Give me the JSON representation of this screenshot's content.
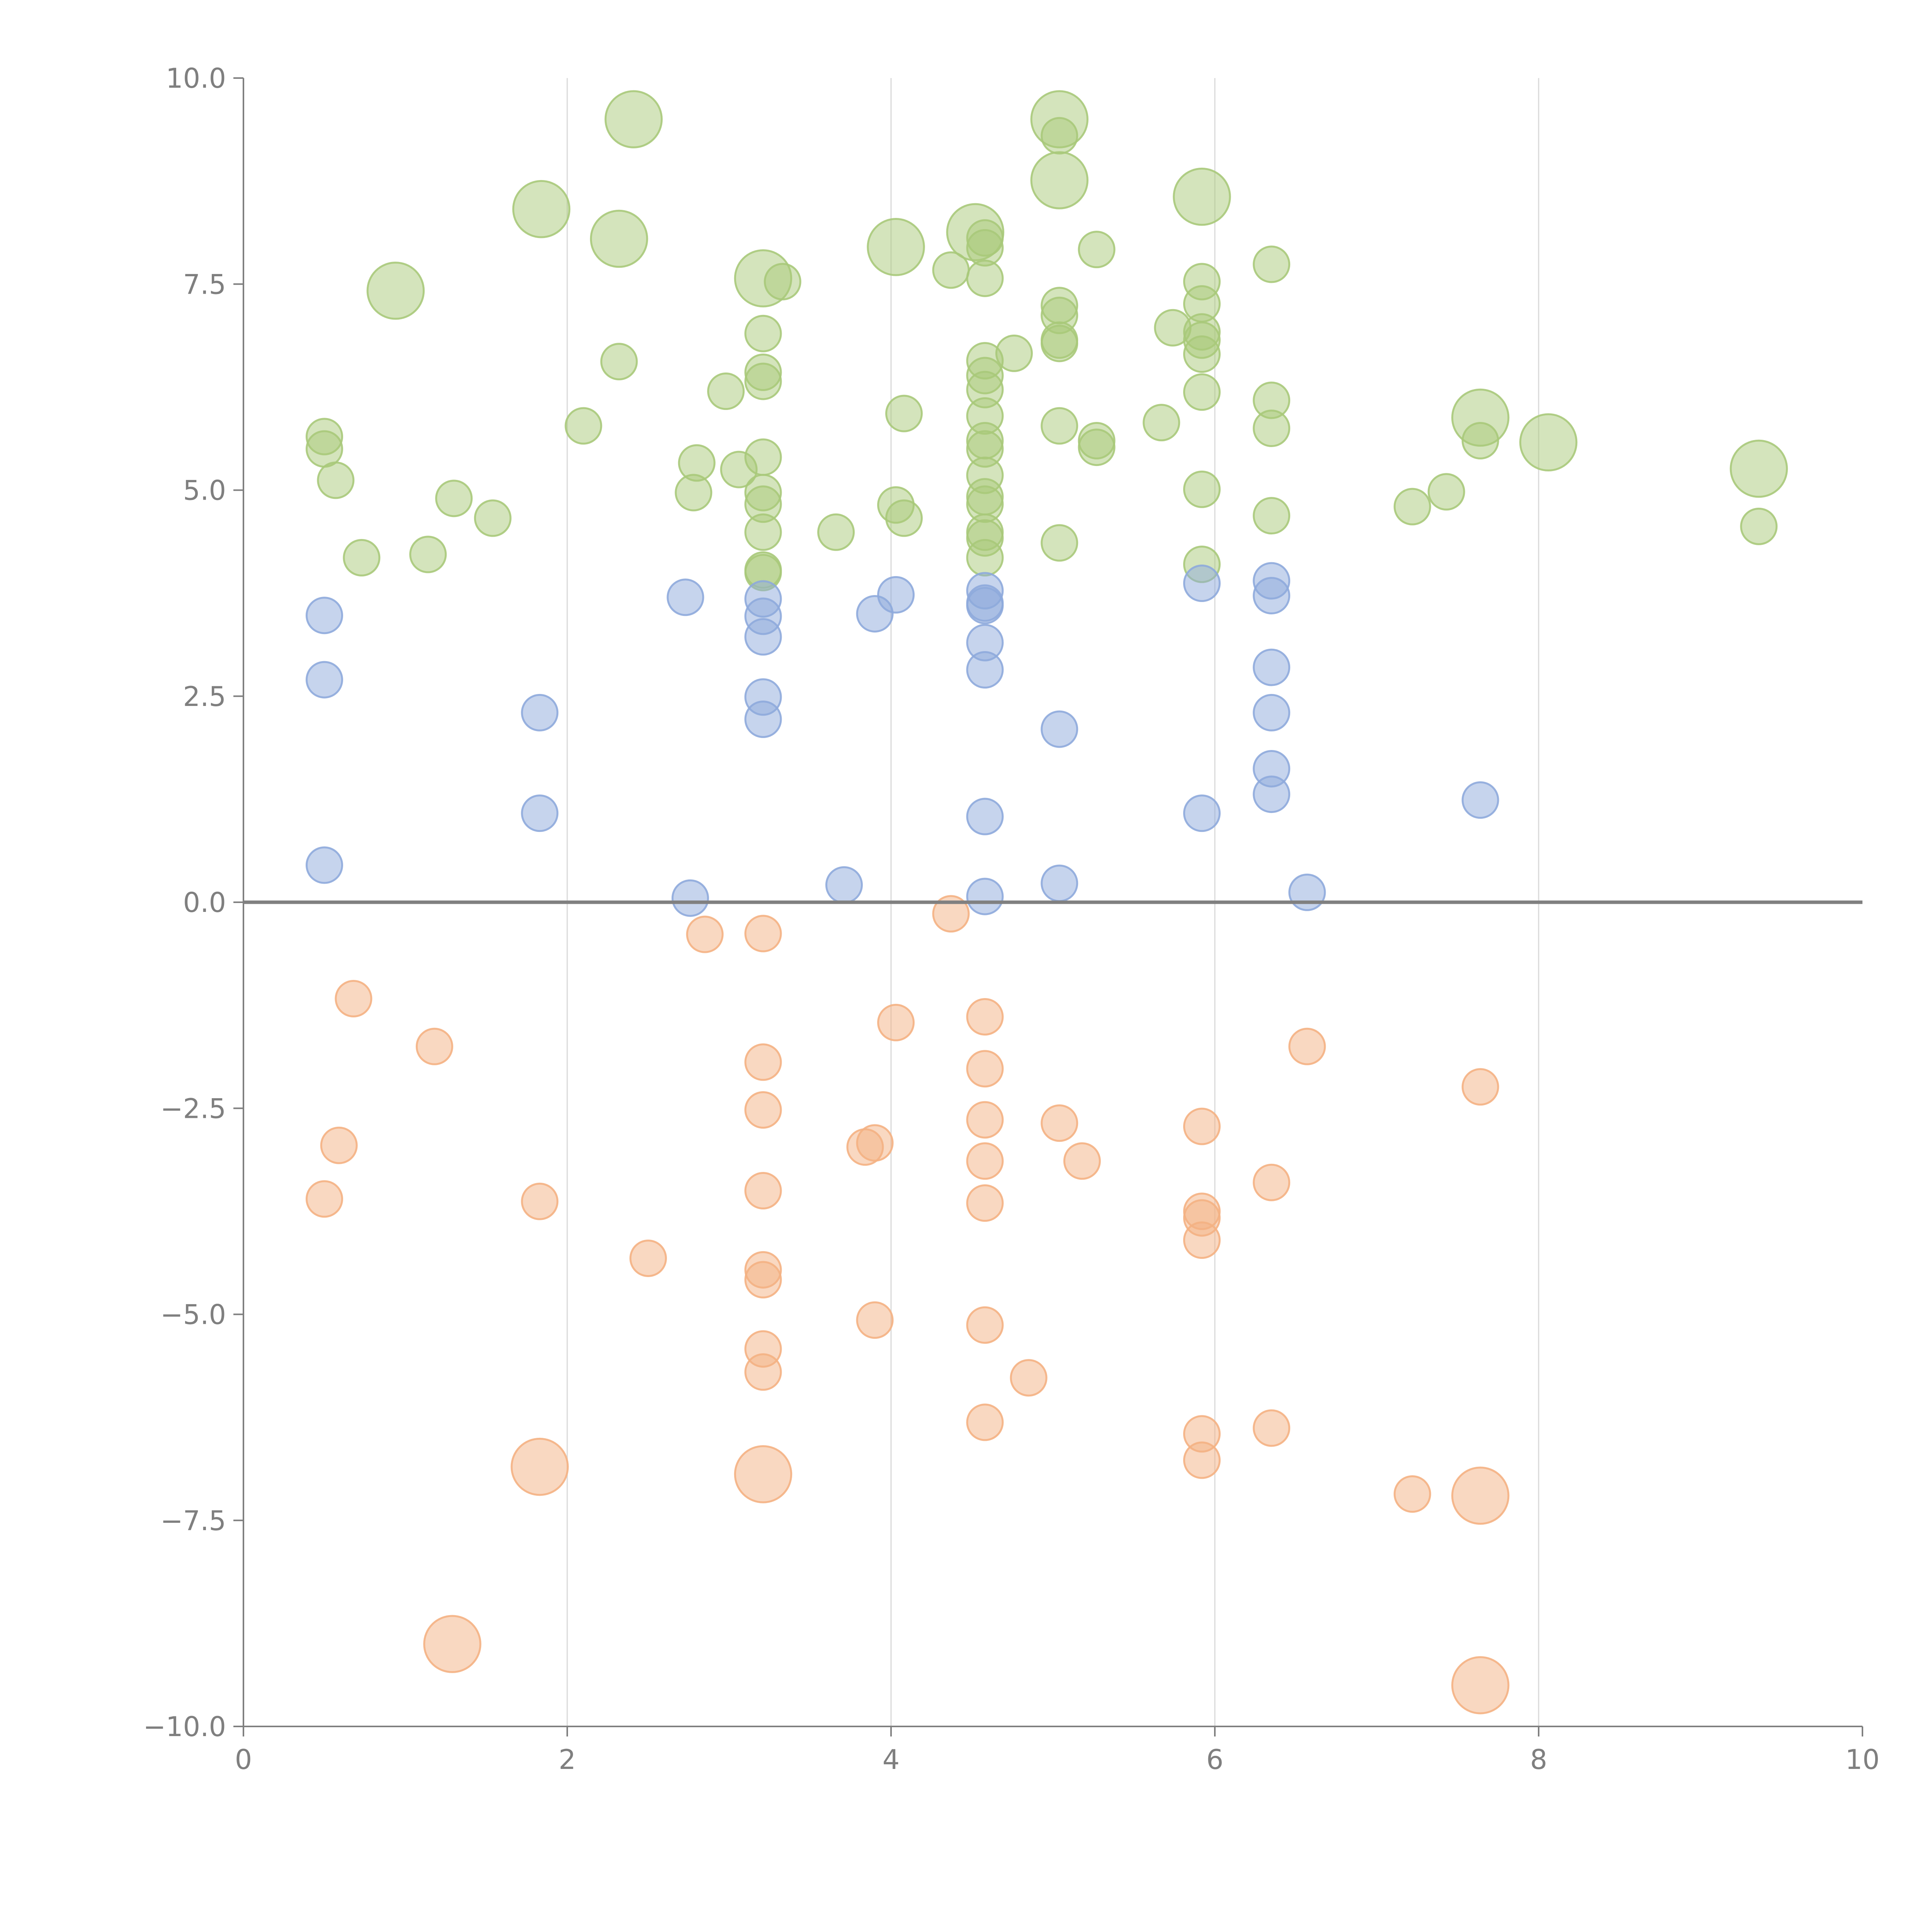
{
  "chart_data": {
    "type": "scatter",
    "subtype": "bubble",
    "title": "",
    "xlabel": "",
    "ylabel": "",
    "xlim": [
      0,
      10
    ],
    "ylim": [
      -10,
      10
    ],
    "x_ticks": [
      0,
      2,
      4,
      6,
      8,
      10
    ],
    "x_tick_labels": [
      "0",
      "2",
      "4",
      "6",
      "8",
      "10"
    ],
    "y_ticks": [
      10,
      7.5,
      5,
      2.5,
      0,
      -2.5,
      -5,
      -7.5,
      -10
    ],
    "y_tick_labels": [
      "10.0",
      "7.5",
      "5.0",
      "2.5",
      "0.0",
      "−2.5",
      "−5.0",
      "−7.5",
      "−10.0"
    ],
    "vertical_gridlines": true,
    "reference_line_y": 0,
    "series": [
      {
        "name": "green",
        "color": "#a9c97a",
        "points": [
          {
            "x": 0.5,
            "y": 5.65,
            "size": 1
          },
          {
            "x": 0.5,
            "y": 5.5,
            "size": 1
          },
          {
            "x": 0.57,
            "y": 5.12,
            "size": 1
          },
          {
            "x": 0.73,
            "y": 4.18,
            "size": 1
          },
          {
            "x": 0.94,
            "y": 7.42,
            "size": 2.5
          },
          {
            "x": 1.14,
            "y": 4.22,
            "size": 1
          },
          {
            "x": 1.3,
            "y": 4.9,
            "size": 1
          },
          {
            "x": 1.54,
            "y": 4.66,
            "size": 1
          },
          {
            "x": 1.84,
            "y": 8.41,
            "size": 2.5
          },
          {
            "x": 2.1,
            "y": 5.78,
            "size": 1
          },
          {
            "x": 2.32,
            "y": 8.05,
            "size": 2.5
          },
          {
            "x": 2.32,
            "y": 6.56,
            "size": 1
          },
          {
            "x": 2.41,
            "y": 9.5,
            "size": 2.5
          },
          {
            "x": 2.78,
            "y": 4.97,
            "size": 1
          },
          {
            "x": 2.8,
            "y": 5.33,
            "size": 1
          },
          {
            "x": 2.98,
            "y": 6.2,
            "size": 1
          },
          {
            "x": 3.06,
            "y": 5.25,
            "size": 1
          },
          {
            "x": 3.21,
            "y": 7.57,
            "size": 2.5
          },
          {
            "x": 3.21,
            "y": 6.9,
            "size": 1
          },
          {
            "x": 3.21,
            "y": 6.43,
            "size": 1
          },
          {
            "x": 3.21,
            "y": 6.32,
            "size": 1
          },
          {
            "x": 3.21,
            "y": 5.4,
            "size": 1
          },
          {
            "x": 3.21,
            "y": 4.97,
            "size": 1
          },
          {
            "x": 3.21,
            "y": 4.83,
            "size": 1
          },
          {
            "x": 3.21,
            "y": 4.49,
            "size": 1
          },
          {
            "x": 3.21,
            "y": 4.03,
            "size": 1
          },
          {
            "x": 3.21,
            "y": 4.0,
            "size": 1
          },
          {
            "x": 3.33,
            "y": 7.53,
            "size": 1
          },
          {
            "x": 3.66,
            "y": 4.49,
            "size": 1
          },
          {
            "x": 4.03,
            "y": 7.95,
            "size": 2.5
          },
          {
            "x": 4.03,
            "y": 4.82,
            "size": 1
          },
          {
            "x": 4.08,
            "y": 4.66,
            "size": 1
          },
          {
            "x": 4.08,
            "y": 5.93,
            "size": 1
          },
          {
            "x": 4.37,
            "y": 7.67,
            "size": 1
          },
          {
            "x": 4.52,
            "y": 8.13,
            "size": 2.5
          },
          {
            "x": 4.58,
            "y": 8.06,
            "size": 1
          },
          {
            "x": 4.58,
            "y": 7.94,
            "size": 1
          },
          {
            "x": 4.58,
            "y": 7.57,
            "size": 1
          },
          {
            "x": 4.58,
            "y": 6.57,
            "size": 1
          },
          {
            "x": 4.58,
            "y": 6.39,
            "size": 1
          },
          {
            "x": 4.58,
            "y": 6.22,
            "size": 1
          },
          {
            "x": 4.58,
            "y": 5.9,
            "size": 1
          },
          {
            "x": 4.58,
            "y": 5.6,
            "size": 1
          },
          {
            "x": 4.58,
            "y": 5.5,
            "size": 1
          },
          {
            "x": 4.58,
            "y": 5.18,
            "size": 1
          },
          {
            "x": 4.58,
            "y": 4.92,
            "size": 1
          },
          {
            "x": 4.58,
            "y": 4.83,
            "size": 1
          },
          {
            "x": 4.58,
            "y": 4.49,
            "size": 1
          },
          {
            "x": 4.58,
            "y": 4.42,
            "size": 1
          },
          {
            "x": 4.58,
            "y": 4.18,
            "size": 1
          },
          {
            "x": 4.76,
            "y": 6.66,
            "size": 1
          },
          {
            "x": 5.04,
            "y": 9.5,
            "size": 2.5
          },
          {
            "x": 5.04,
            "y": 9.3,
            "size": 1
          },
          {
            "x": 5.04,
            "y": 8.76,
            "size": 2.5
          },
          {
            "x": 5.04,
            "y": 7.24,
            "size": 1
          },
          {
            "x": 5.04,
            "y": 7.12,
            "size": 1
          },
          {
            "x": 5.04,
            "y": 6.82,
            "size": 1
          },
          {
            "x": 5.04,
            "y": 6.78,
            "size": 1
          },
          {
            "x": 5.04,
            "y": 5.78,
            "size": 1
          },
          {
            "x": 5.04,
            "y": 4.36,
            "size": 1
          },
          {
            "x": 5.27,
            "y": 7.92,
            "size": 1
          },
          {
            "x": 5.27,
            "y": 5.6,
            "size": 1
          },
          {
            "x": 5.27,
            "y": 5.52,
            "size": 1
          },
          {
            "x": 5.67,
            "y": 5.82,
            "size": 1
          },
          {
            "x": 5.74,
            "y": 6.97,
            "size": 1
          },
          {
            "x": 5.92,
            "y": 8.56,
            "size": 2.5
          },
          {
            "x": 5.92,
            "y": 7.53,
            "size": 1
          },
          {
            "x": 5.92,
            "y": 7.26,
            "size": 1
          },
          {
            "x": 5.92,
            "y": 6.92,
            "size": 1
          },
          {
            "x": 5.92,
            "y": 6.82,
            "size": 1
          },
          {
            "x": 5.92,
            "y": 6.65,
            "size": 1
          },
          {
            "x": 5.92,
            "y": 6.19,
            "size": 1
          },
          {
            "x": 5.92,
            "y": 5.01,
            "size": 1
          },
          {
            "x": 5.92,
            "y": 4.1,
            "size": 1
          },
          {
            "x": 6.35,
            "y": 7.74,
            "size": 1
          },
          {
            "x": 6.35,
            "y": 6.09,
            "size": 1
          },
          {
            "x": 6.35,
            "y": 5.75,
            "size": 1
          },
          {
            "x": 6.35,
            "y": 4.69,
            "size": 1
          },
          {
            "x": 7.22,
            "y": 4.8,
            "size": 1
          },
          {
            "x": 7.43,
            "y": 4.98,
            "size": 1
          },
          {
            "x": 7.64,
            "y": 5.88,
            "size": 2.5
          },
          {
            "x": 7.64,
            "y": 5.6,
            "size": 1
          },
          {
            "x": 8.06,
            "y": 5.58,
            "size": 2.5
          },
          {
            "x": 9.36,
            "y": 5.26,
            "size": 2.5
          },
          {
            "x": 9.36,
            "y": 4.56,
            "size": 1
          }
        ]
      },
      {
        "name": "blue",
        "color": "#8eaadb",
        "points": [
          {
            "x": 0.5,
            "y": 3.48,
            "size": 1
          },
          {
            "x": 0.5,
            "y": 2.7,
            "size": 1
          },
          {
            "x": 0.5,
            "y": 0.45,
            "size": 1
          },
          {
            "x": 1.83,
            "y": 2.3,
            "size": 1
          },
          {
            "x": 1.83,
            "y": 1.08,
            "size": 1
          },
          {
            "x": 2.73,
            "y": 3.7,
            "size": 1
          },
          {
            "x": 2.76,
            "y": 0.05,
            "size": 1
          },
          {
            "x": 3.21,
            "y": 3.68,
            "size": 1
          },
          {
            "x": 3.21,
            "y": 3.47,
            "size": 1
          },
          {
            "x": 3.21,
            "y": 3.22,
            "size": 1
          },
          {
            "x": 3.21,
            "y": 2.49,
            "size": 1
          },
          {
            "x": 3.21,
            "y": 2.22,
            "size": 1
          },
          {
            "x": 3.71,
            "y": 0.21,
            "size": 1
          },
          {
            "x": 3.9,
            "y": 3.5,
            "size": 1
          },
          {
            "x": 4.03,
            "y": 3.73,
            "size": 1
          },
          {
            "x": 4.58,
            "y": 3.78,
            "size": 1
          },
          {
            "x": 4.58,
            "y": 3.63,
            "size": 1
          },
          {
            "x": 4.58,
            "y": 3.6,
            "size": 1
          },
          {
            "x": 4.58,
            "y": 3.15,
            "size": 1
          },
          {
            "x": 4.58,
            "y": 2.82,
            "size": 1
          },
          {
            "x": 4.58,
            "y": 1.04,
            "size": 1
          },
          {
            "x": 4.58,
            "y": 0.07,
            "size": 1
          },
          {
            "x": 5.04,
            "y": 2.1,
            "size": 1
          },
          {
            "x": 5.04,
            "y": 0.23,
            "size": 1
          },
          {
            "x": 5.92,
            "y": 3.87,
            "size": 1
          },
          {
            "x": 5.92,
            "y": 1.08,
            "size": 1
          },
          {
            "x": 6.35,
            "y": 3.9,
            "size": 1
          },
          {
            "x": 6.35,
            "y": 3.72,
            "size": 1
          },
          {
            "x": 6.35,
            "y": 2.85,
            "size": 1
          },
          {
            "x": 6.35,
            "y": 2.3,
            "size": 1
          },
          {
            "x": 6.35,
            "y": 1.62,
            "size": 1
          },
          {
            "x": 6.35,
            "y": 1.31,
            "size": 1
          },
          {
            "x": 6.57,
            "y": 0.12,
            "size": 1
          },
          {
            "x": 7.64,
            "y": 1.24,
            "size": 1
          }
        ]
      },
      {
        "name": "orange",
        "color": "#f4b183",
        "points": [
          {
            "x": 0.5,
            "y": -3.6,
            "size": 1
          },
          {
            "x": 0.59,
            "y": -2.95,
            "size": 1
          },
          {
            "x": 0.68,
            "y": -1.17,
            "size": 1
          },
          {
            "x": 1.18,
            "y": -1.75,
            "size": 1
          },
          {
            "x": 1.29,
            "y": -9.0,
            "size": 2.5
          },
          {
            "x": 1.83,
            "y": -3.63,
            "size": 1
          },
          {
            "x": 1.83,
            "y": -6.85,
            "size": 2.5
          },
          {
            "x": 2.5,
            "y": -4.32,
            "size": 1
          },
          {
            "x": 2.85,
            "y": -0.39,
            "size": 1
          },
          {
            "x": 3.21,
            "y": -0.38,
            "size": 1
          },
          {
            "x": 3.21,
            "y": -1.94,
            "size": 1
          },
          {
            "x": 3.21,
            "y": -2.52,
            "size": 1
          },
          {
            "x": 3.21,
            "y": -3.5,
            "size": 1
          },
          {
            "x": 3.21,
            "y": -4.46,
            "size": 1
          },
          {
            "x": 3.21,
            "y": -4.58,
            "size": 1
          },
          {
            "x": 3.21,
            "y": -5.42,
            "size": 1
          },
          {
            "x": 3.21,
            "y": -5.7,
            "size": 1
          },
          {
            "x": 3.21,
            "y": -6.94,
            "size": 2.5
          },
          {
            "x": 3.84,
            "y": -2.97,
            "size": 1
          },
          {
            "x": 3.9,
            "y": -2.92,
            "size": 1
          },
          {
            "x": 3.9,
            "y": -5.07,
            "size": 1
          },
          {
            "x": 4.03,
            "y": -1.46,
            "size": 1
          },
          {
            "x": 4.37,
            "y": -0.14,
            "size": 1
          },
          {
            "x": 4.58,
            "y": -1.39,
            "size": 1
          },
          {
            "x": 4.58,
            "y": -2.02,
            "size": 1
          },
          {
            "x": 4.58,
            "y": -2.64,
            "size": 1
          },
          {
            "x": 4.58,
            "y": -3.14,
            "size": 1
          },
          {
            "x": 4.58,
            "y": -3.65,
            "size": 1
          },
          {
            "x": 4.58,
            "y": -5.13,
            "size": 1
          },
          {
            "x": 4.58,
            "y": -6.31,
            "size": 1
          },
          {
            "x": 4.85,
            "y": -5.77,
            "size": 1
          },
          {
            "x": 5.04,
            "y": -2.68,
            "size": 1
          },
          {
            "x": 5.18,
            "y": -3.14,
            "size": 1
          },
          {
            "x": 5.92,
            "y": -2.72,
            "size": 1
          },
          {
            "x": 5.92,
            "y": -3.75,
            "size": 1
          },
          {
            "x": 5.92,
            "y": -3.83,
            "size": 1
          },
          {
            "x": 5.92,
            "y": -4.1,
            "size": 1
          },
          {
            "x": 5.92,
            "y": -6.45,
            "size": 1
          },
          {
            "x": 5.92,
            "y": -6.77,
            "size": 1
          },
          {
            "x": 6.35,
            "y": -3.4,
            "size": 1
          },
          {
            "x": 6.35,
            "y": -6.38,
            "size": 1
          },
          {
            "x": 6.57,
            "y": -1.75,
            "size": 1
          },
          {
            "x": 7.22,
            "y": -7.18,
            "size": 1
          },
          {
            "x": 7.64,
            "y": -2.24,
            "size": 1
          },
          {
            "x": 7.64,
            "y": -7.2,
            "size": 2.5
          },
          {
            "x": 7.64,
            "y": -9.5,
            "size": 2.5
          }
        ]
      }
    ]
  }
}
